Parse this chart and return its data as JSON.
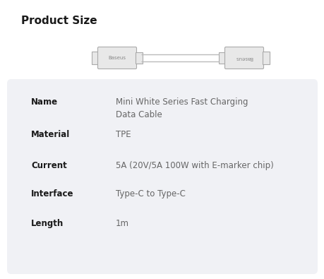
{
  "title": "Product Size",
  "title_fontsize": 11,
  "title_fontweight": "bold",
  "title_color": "#1a1a1a",
  "background_color": "#ffffff",
  "card_color": "#f0f1f5",
  "specs": [
    {
      "label": "Name",
      "value": "Mini White Series Fast Charging\nData Cable"
    },
    {
      "label": "Material",
      "value": "TPE"
    },
    {
      "label": "Current",
      "value": "5A (20V/5A 100W with E-marker chip)"
    },
    {
      "label": "Interface",
      "value": "Type-C to Type-C"
    },
    {
      "label": "Length",
      "value": "1m"
    }
  ],
  "label_fontsize": 8.5,
  "value_fontsize": 8.5,
  "label_color": "#1a1a1a",
  "value_color": "#666666",
  "cable_color": "#bbbbbb",
  "connector_fill": "#e8e8e8",
  "connector_edge": "#aaaaaa",
  "baseus_text_color": "#888888",
  "baseus_fontsize": 5.0
}
